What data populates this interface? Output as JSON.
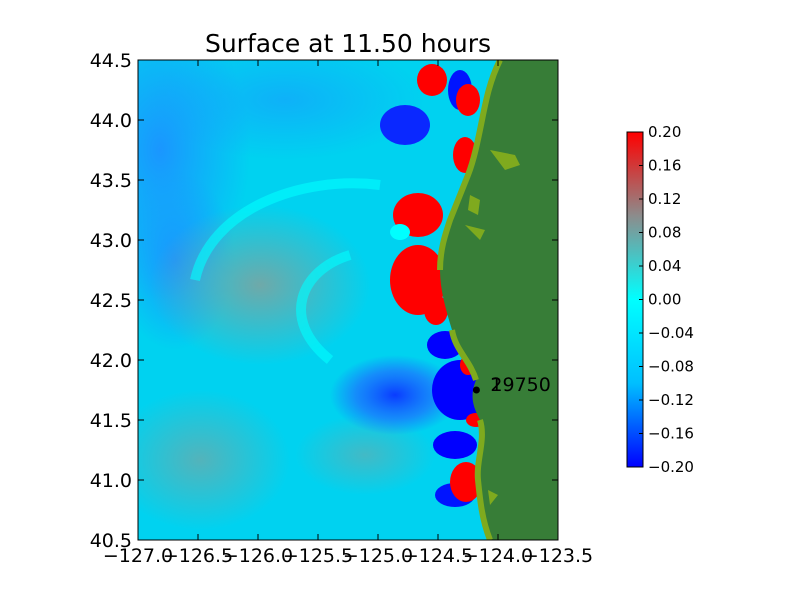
{
  "chart_data": {
    "type": "heatmap",
    "title": "Surface at 11.50 hours",
    "xlabel": "",
    "ylabel": "",
    "xlim": [
      -127.0,
      -123.5
    ],
    "ylim": [
      40.5,
      44.5
    ],
    "x_ticks": [
      -127.0,
      -126.5,
      -126.0,
      -125.5,
      -125.0,
      -124.5,
      -124.0,
      -123.5
    ],
    "x_tick_labels": [
      "−127.0",
      "−126.5",
      "−126.0",
      "−125.5",
      "−125.0",
      "−124.5",
      "−124.0",
      "−123.5"
    ],
    "y_ticks": [
      40.5,
      41.0,
      41.5,
      42.0,
      42.5,
      43.0,
      43.5,
      44.0,
      44.5
    ],
    "y_tick_labels": [
      "40.5",
      "41.0",
      "41.5",
      "42.0",
      "42.5",
      "43.0",
      "43.5",
      "44.0",
      "44.5"
    ],
    "colorbar": {
      "vmin": -0.2,
      "vmax": 0.2,
      "ticks": [
        0.2,
        0.16,
        0.12,
        0.08,
        0.04,
        0.0,
        -0.04,
        -0.08,
        -0.12,
        -0.16,
        -0.2
      ],
      "tick_labels": [
        "0.20",
        "0.16",
        "0.12",
        "0.08",
        "0.04",
        "0.00",
        "−0.04",
        "−0.08",
        "−0.12",
        "−0.16",
        "−0.20"
      ],
      "colors": [
        "#0000ff",
        "#00bfff",
        "#00ffff",
        "#8c8c8c",
        "#ff0000"
      ]
    },
    "land_color": "#377d37",
    "shore_color": "#7faa1e",
    "gauge": {
      "label": "19750",
      "lon": -124.18,
      "lat": 41.75,
      "overlap_label": "2"
    }
  }
}
